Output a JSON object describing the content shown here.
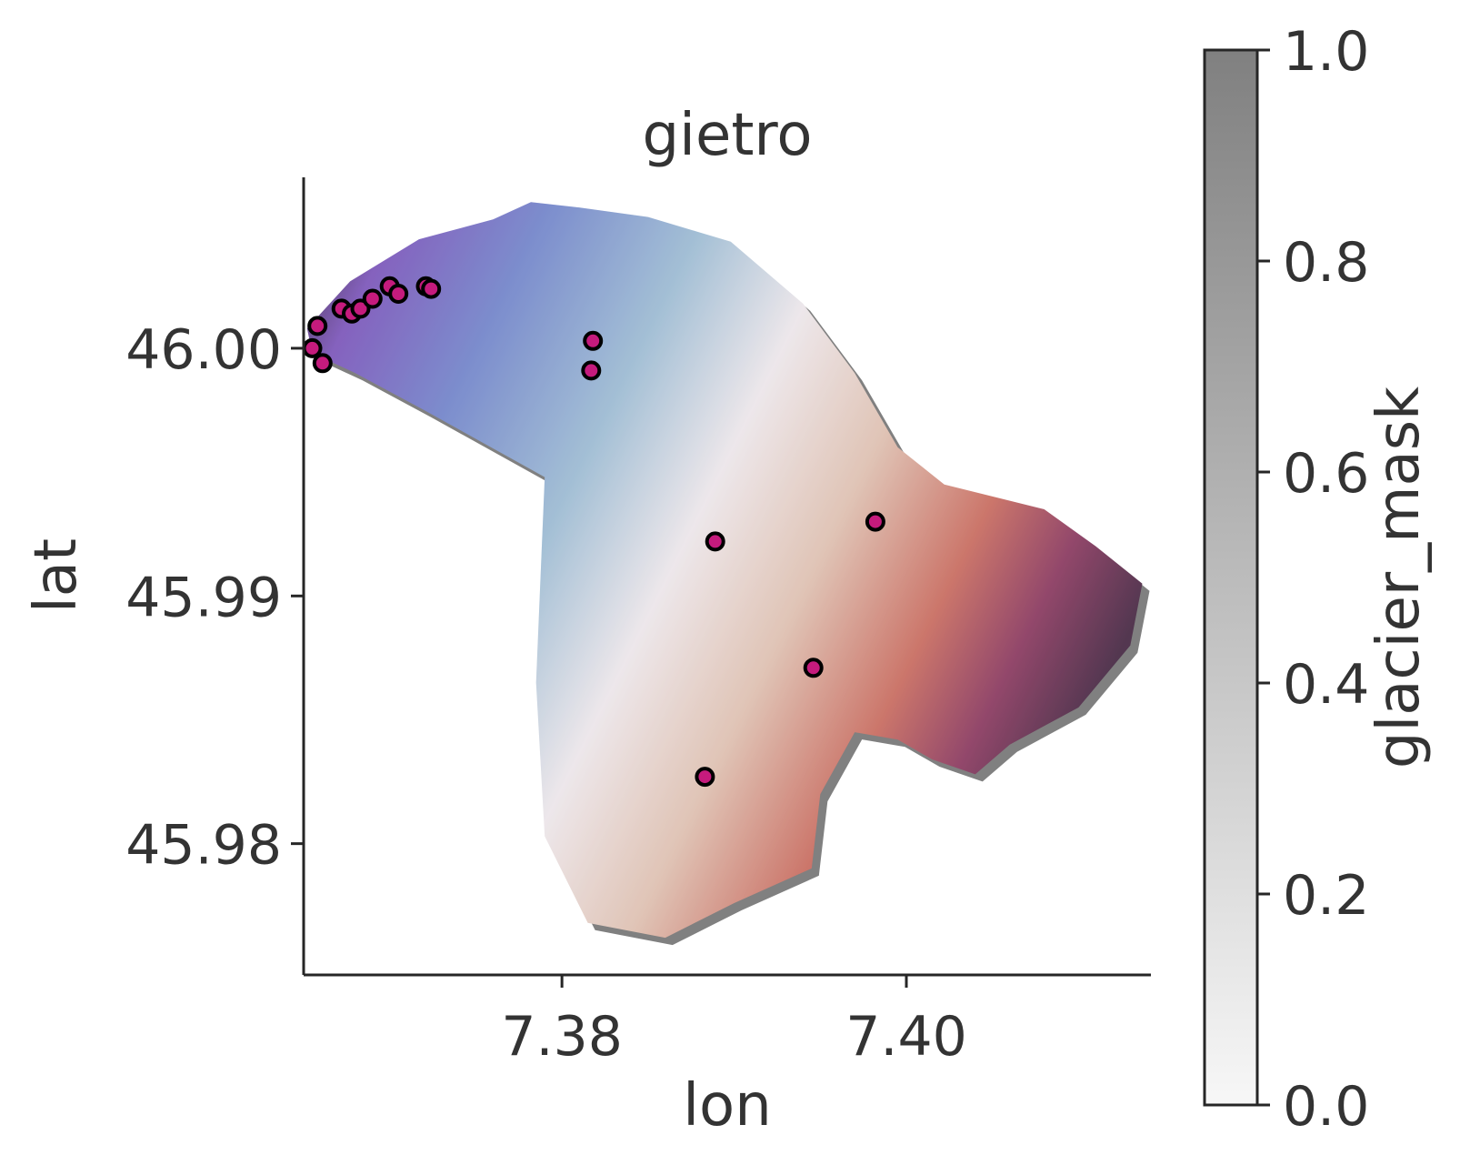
{
  "chart_data": {
    "type": "scatter",
    "title": "gietro",
    "xlabel": "lon",
    "ylabel": "lat",
    "xlim": [
      7.365,
      7.4142
    ],
    "ylim": [
      45.9747,
      46.0069
    ],
    "xticks": [
      {
        "value": 7.38,
        "label": "7.38"
      },
      {
        "value": 7.4,
        "label": "7.40"
      }
    ],
    "yticks": [
      {
        "value": 45.98,
        "label": "45.98"
      },
      {
        "value": 45.99,
        "label": "45.99"
      },
      {
        "value": 46.0,
        "label": "46.00"
      }
    ],
    "grid": false,
    "colorbar": {
      "label": "glacier_mask",
      "range": [
        0,
        1
      ],
      "colors": [
        "#f7f7f7",
        "#808080"
      ],
      "ticks": [
        {
          "value": 0.0,
          "label": "0.0"
        },
        {
          "value": 0.2,
          "label": "0.2"
        },
        {
          "value": 0.4,
          "label": "0.4"
        },
        {
          "value": 0.6,
          "label": "0.6"
        },
        {
          "value": 0.8,
          "label": "0.8"
        },
        {
          "value": 1.0,
          "label": "1.0"
        }
      ]
    },
    "glacier_outline": [
      [
        7.3652,
        46.0008
      ],
      [
        7.3677,
        46.0027
      ],
      [
        7.3717,
        46.0044
      ],
      [
        7.376,
        46.0052
      ],
      [
        7.3782,
        46.0059
      ],
      [
        7.3808,
        46.0057
      ],
      [
        7.385,
        46.0053
      ],
      [
        7.3898,
        46.0043
      ],
      [
        7.394,
        46.0018
      ],
      [
        7.397,
        45.999
      ],
      [
        7.3995,
        45.996
      ],
      [
        7.4022,
        45.9945
      ],
      [
        7.408,
        45.9935
      ],
      [
        7.411,
        45.992
      ],
      [
        7.4137,
        45.9905
      ],
      [
        7.413,
        45.988
      ],
      [
        7.41,
        45.9855
      ],
      [
        7.406,
        45.984
      ],
      [
        7.404,
        45.9828
      ],
      [
        7.4015,
        45.9834
      ],
      [
        7.3995,
        45.9842
      ],
      [
        7.397,
        45.9845
      ],
      [
        7.395,
        45.982
      ],
      [
        7.3945,
        45.979
      ],
      [
        7.39,
        45.9776
      ],
      [
        7.386,
        45.9762
      ],
      [
        7.3815,
        45.9768
      ],
      [
        7.379,
        45.9803
      ],
      [
        7.3785,
        45.9865
      ],
      [
        7.379,
        45.9948
      ],
      [
        7.372,
        45.9975
      ],
      [
        7.368,
        45.999
      ],
      [
        7.3655,
        45.9998
      ]
    ],
    "surface_colors": {
      "nw_dark": "#2b0f3a",
      "purple": "#6a3fb0",
      "blue": "#5f74c2",
      "light_blue": "#8fb1cc",
      "neutral": "#e9e2e6",
      "tan": "#d9b7a6",
      "red": "#c0584a",
      "maroon": "#7a1f4a",
      "east_dark": "#2d0b2a"
    },
    "stake_color": "#c51b7d",
    "stakes": [
      {
        "lon": 7.3655,
        "lat": 46.0
      },
      {
        "lon": 7.3658,
        "lat": 46.0009
      },
      {
        "lon": 7.3661,
        "lat": 45.9994
      },
      {
        "lon": 7.3672,
        "lat": 46.0016
      },
      {
        "lon": 7.3678,
        "lat": 46.0014
      },
      {
        "lon": 7.3683,
        "lat": 46.0016
      },
      {
        "lon": 7.369,
        "lat": 46.002
      },
      {
        "lon": 7.37,
        "lat": 46.0025
      },
      {
        "lon": 7.3705,
        "lat": 46.0022
      },
      {
        "lon": 7.3721,
        "lat": 46.0025
      },
      {
        "lon": 7.3724,
        "lat": 46.0024
      },
      {
        "lon": 7.3818,
        "lat": 46.0003
      },
      {
        "lon": 7.3817,
        "lat": 45.9991
      },
      {
        "lon": 7.3889,
        "lat": 45.9922
      },
      {
        "lon": 7.3982,
        "lat": 45.993
      },
      {
        "lon": 7.3946,
        "lat": 45.9871
      },
      {
        "lon": 7.3883,
        "lat": 45.9827
      }
    ]
  }
}
